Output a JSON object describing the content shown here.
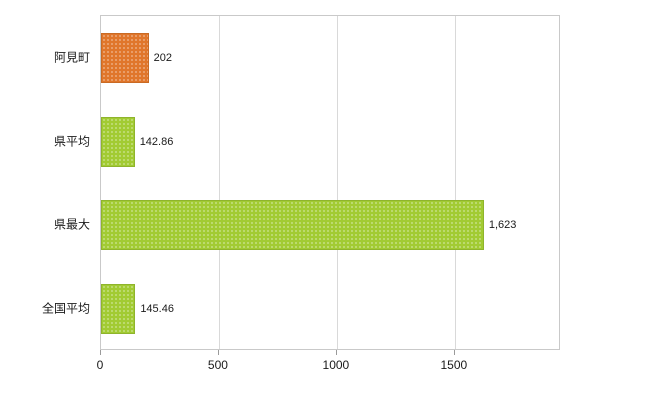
{
  "chart_data": {
    "type": "bar",
    "orientation": "horizontal",
    "title": "",
    "xlabel": "",
    "ylabel": "",
    "categories": [
      "阿見町",
      "県平均",
      "県最大",
      "全国平均"
    ],
    "values": [
      202,
      142.86,
      1623,
      145.46
    ],
    "value_labels": [
      "202",
      "142.86",
      "1,623",
      "145.46"
    ],
    "bar_colors": [
      "#e0762b",
      "#a2cb33",
      "#a2cb33",
      "#a2cb33"
    ],
    "bar_border_colors": [
      "#c96a24",
      "#8fb42c",
      "#8fb42c",
      "#8fb42c"
    ],
    "xlim": [
      0,
      1950
    ],
    "xticks": [
      0,
      500,
      1000,
      1500
    ],
    "xtick_labels": [
      "0",
      "500",
      "1000",
      "1500"
    ],
    "grid": true,
    "legend": "none",
    "plot_border_color": "#c9c9c9",
    "gridline_color": "#d9d9d9",
    "background_color": "#ffffff"
  }
}
